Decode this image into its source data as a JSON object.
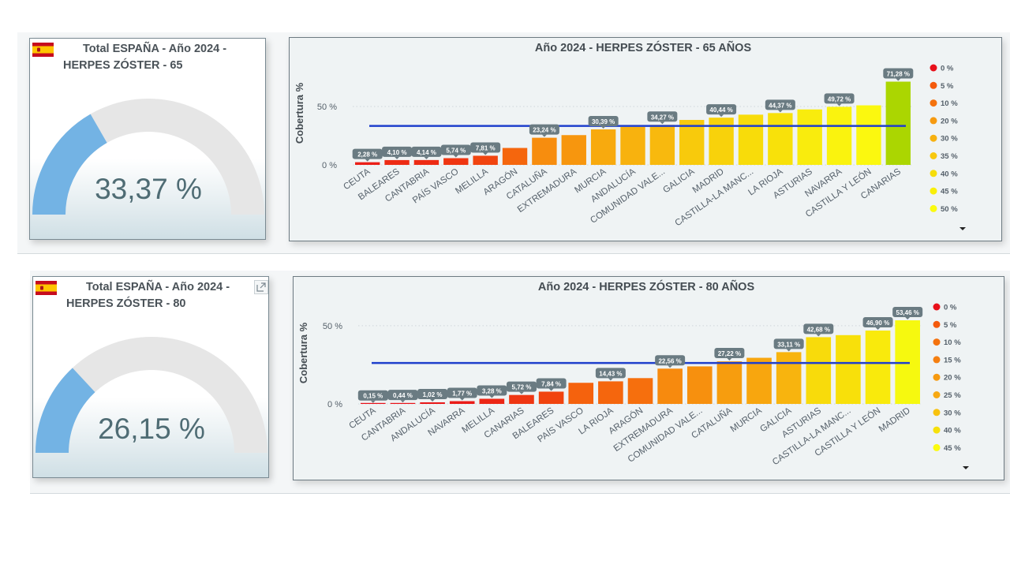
{
  "panels": [
    {
      "gauge": {
        "title": "Total ESPAÑA - Año 2024 - HERPES ZÓSTER - 65",
        "value_text": "33,37 %",
        "value": 33.37,
        "min": 0,
        "max": 100,
        "fill_color": "#73b3e4",
        "track_color": "#e6e6e6"
      },
      "chart_data": {
        "type": "bar",
        "title": "Año 2024 - HERPES ZÓSTER - 65 AÑOS",
        "ylabel": "Cobertura %",
        "xlabel": "",
        "ylim": [
          0,
          75
        ],
        "yticks": [
          0,
          50
        ],
        "ytick_labels": [
          "0 %",
          "50 %"
        ],
        "categories": [
          "CEUTA",
          "BALEARES",
          "CANTABRIA",
          "PAÍS VASCO",
          "MELILLA",
          "ARAGÓN",
          "CATALUÑA",
          "EXTREMADURA",
          "MURCIA",
          "ANDALUCÍA",
          "COMUNIDAD VALE...",
          "GALICIA",
          "MADRID",
          "CASTILLA-LA MANC...",
          "LA RIOJA",
          "ASTURIAS",
          "NAVARRA",
          "CASTILLA Y LEÓN",
          "CANARIAS"
        ],
        "values": [
          2.28,
          4.1,
          4.14,
          5.74,
          7.81,
          14.5,
          23.24,
          25.5,
          30.39,
          32.5,
          34.27,
          38.5,
          40.44,
          43.0,
          44.37,
          47.5,
          49.72,
          51.0,
          71.28
        ],
        "data_labels": [
          "2,28 %",
          "4,10 %",
          "4,14 %",
          "5,74 %",
          "7,81 %",
          "",
          "23,24 %",
          "",
          "30,39 %",
          "",
          "34,27 %",
          "",
          "40,44 %",
          "",
          "44,37 %",
          "",
          "49,72 %",
          "",
          "71,28 %"
        ],
        "reference_line": 33.37,
        "reference_color": "#1f3fcc",
        "legend": {
          "position": "right",
          "entries": [
            "0 %",
            "5 %",
            "10 %",
            "20 %",
            "30 %",
            "35 %",
            "40 %",
            "45 %",
            "50 %"
          ],
          "colors": [
            "#e8101a",
            "#f45a0c",
            "#f4720e",
            "#f69a10",
            "#f7b110",
            "#f8c80e",
            "#f6dd0a",
            "#f9ef08",
            "#fbfb10"
          ]
        }
      }
    },
    {
      "gauge": {
        "title": "Total ESPAÑA - Año 2024 - HERPES ZÓSTER - 80",
        "value_text": "26,15 %",
        "value": 26.15,
        "min": 0,
        "max": 100,
        "fill_color": "#73b3e4",
        "track_color": "#e6e6e6"
      },
      "chart_data": {
        "type": "bar",
        "title": "Año 2024 - HERPES ZÓSTER - 80 AÑOS",
        "ylabel": "Cobertura %",
        "xlabel": "",
        "ylim": [
          0,
          55
        ],
        "yticks": [
          0,
          50
        ],
        "ytick_labels": [
          "0 %",
          "50 %"
        ],
        "categories": [
          "CEUTA",
          "CANTABRIA",
          "ANDALUCÍA",
          "NAVARRA",
          "MELILLA",
          "CANARIAS",
          "BALEARES",
          "PAÍS VASCO",
          "LA RIOJA",
          "ARAGÓN",
          "EXTREMADURA",
          "COMUNIDAD VALE...",
          "CATALUÑA",
          "MURCIA",
          "GALICIA",
          "ASTURIAS",
          "CASTILLA-LA MANC...",
          "CASTILLA Y LEÓN",
          "MADRID"
        ],
        "values": [
          0.15,
          0.44,
          1.02,
          1.77,
          3.28,
          5.72,
          7.84,
          13.5,
          14.43,
          16.5,
          22.56,
          24.0,
          27.22,
          29.5,
          33.11,
          42.68,
          44.0,
          46.9,
          53.46
        ],
        "data_labels": [
          "0,15 %",
          "0,44 %",
          "1,02 %",
          "1,77 %",
          "3,28 %",
          "5,72 %",
          "7,84 %",
          "",
          "14,43 %",
          "",
          "22,56 %",
          "",
          "27,22 %",
          "",
          "33,11 %",
          "42,68 %",
          "",
          "46,90 %",
          "53,46 %"
        ],
        "reference_line": 26.15,
        "reference_color": "#1f3fcc",
        "legend": {
          "position": "right",
          "entries": [
            "0 %",
            "5 %",
            "10 %",
            "15 %",
            "20 %",
            "25 %",
            "30 %",
            "40 %",
            "45 %"
          ],
          "colors": [
            "#e8101a",
            "#f45a0c",
            "#f4720e",
            "#f57f10",
            "#f69a10",
            "#f7a812",
            "#f8c20e",
            "#f6e00a",
            "#fbfb10"
          ]
        }
      }
    }
  ]
}
